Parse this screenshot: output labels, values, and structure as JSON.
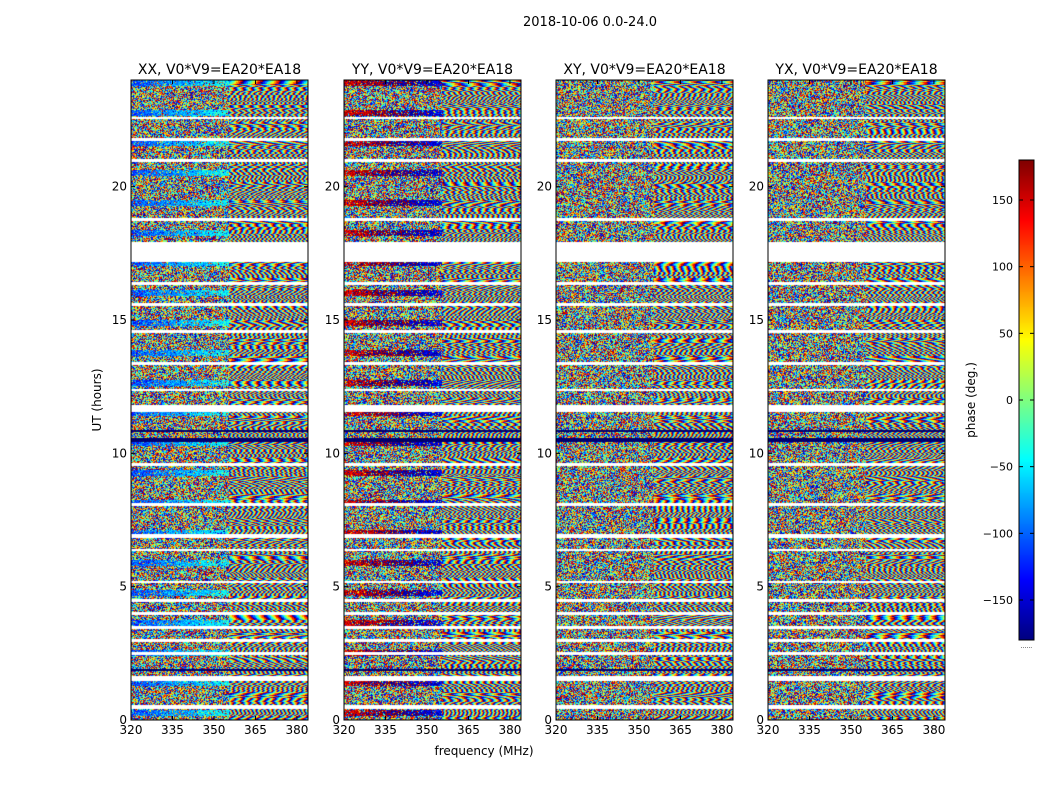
{
  "chart_data": {
    "type": "heatmap",
    "suptitle": "2018-10-06 0.0-24.0",
    "xlabel": "frequency (MHz)",
    "ylabel": "UT (hours)",
    "xlim": [
      320,
      384
    ],
    "ylim": [
      0,
      24
    ],
    "xticks": [
      "320",
      "335",
      "350",
      "365",
      "380"
    ],
    "yticks": [
      "0",
      "5",
      "10",
      "15",
      "20"
    ],
    "panels": [
      {
        "title": "XX, V0*V9=EA20*EA18",
        "seed": 11,
        "low_band_bias": -110
      },
      {
        "title": "YY, V0*V9=EA20*EA18",
        "seed": 23,
        "low_band_bias": 150
      },
      {
        "title": "XY, V0*V9=EA20*EA18",
        "seed": 37,
        "low_band_bias": null
      },
      {
        "title": "YX, V0*V9=EA20*EA18",
        "seed": 53,
        "low_band_bias": null
      }
    ],
    "gaps_hours": [
      [
        0.45,
        0.6
      ],
      [
        1.5,
        1.65
      ],
      [
        2.45,
        2.55
      ],
      [
        2.95,
        3.05
      ],
      [
        3.45,
        3.55
      ],
      [
        3.95,
        4.05
      ],
      [
        4.45,
        4.55
      ],
      [
        5.15,
        5.25
      ],
      [
        6.35,
        6.45
      ],
      [
        6.85,
        7.0
      ],
      [
        8.05,
        8.15
      ],
      [
        9.55,
        9.65
      ],
      [
        11.55,
        11.85
      ],
      [
        12.35,
        12.45
      ],
      [
        13.35,
        13.45
      ],
      [
        14.55,
        14.65
      ],
      [
        15.55,
        15.65
      ],
      [
        16.35,
        16.45
      ],
      [
        17.2,
        17.95
      ],
      [
        18.75,
        18.85
      ],
      [
        20.95,
        21.05
      ],
      [
        21.75,
        21.85
      ],
      [
        22.55,
        22.65
      ]
    ],
    "dark_bands_hours": [
      [
        1.85,
        1.95
      ],
      [
        10.45,
        10.6
      ],
      [
        10.8,
        10.9
      ]
    ],
    "colorbar": {
      "label": "phase (deg.)",
      "range": [
        -180,
        180
      ],
      "ticks": [
        "150",
        "100",
        "50",
        "0",
        "−50",
        "−100",
        "−150"
      ],
      "tick_values": [
        150,
        100,
        50,
        0,
        -50,
        -100,
        -150
      ],
      "colormap": "jet",
      "under_label": "......"
    }
  }
}
